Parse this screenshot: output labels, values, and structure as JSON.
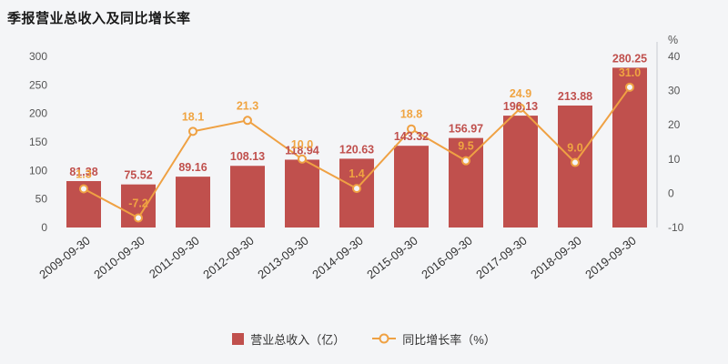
{
  "page": {
    "title": "季报营业总收入及同比增长率"
  },
  "chart_data": {
    "type": "bar+line",
    "title": "季报营业总收入及同比增长率",
    "categories": [
      "2009-09-30",
      "2010-09-30",
      "2011-09-30",
      "2012-09-30",
      "2013-09-30",
      "2014-09-30",
      "2015-09-30",
      "2016-09-30",
      "2017-09-30",
      "2018-09-30",
      "2019-09-30"
    ],
    "series": [
      {
        "name": "营业总收入（亿）",
        "type": "bar",
        "axis": "left",
        "values": [
          81.38,
          75.52,
          89.16,
          108.13,
          118.94,
          120.63,
          143.32,
          156.97,
          196.13,
          213.88,
          280.25
        ]
      },
      {
        "name": "同比增长率（%）",
        "type": "line",
        "axis": "right",
        "values": [
          1.3,
          -7.2,
          18.1,
          21.3,
          10.0,
          1.4,
          18.8,
          9.5,
          24.9,
          9.0,
          31.0
        ]
      }
    ],
    "left_axis": {
      "min": 0,
      "max": 300,
      "step": 50,
      "ticks": [
        0,
        50,
        100,
        150,
        200,
        250,
        300
      ]
    },
    "right_axis": {
      "min": -10,
      "max": 40,
      "step": 10,
      "unit": "%",
      "ticks": [
        -10,
        0,
        10,
        20,
        30,
        40
      ]
    },
    "legend": [
      "营业总收入（亿）",
      "同比增长率（%）"
    ],
    "grid": false,
    "legend_position": "bottom"
  },
  "colors": {
    "background": "#f4f5f7",
    "bar": "#c0504d",
    "bar_label": "#c0504d",
    "line": "#efa143",
    "growth_label": "#f0a441",
    "axis_text": "#555555",
    "x_label": "#333333",
    "axis_line": "#c9ccd0",
    "title": "#1a1a1a"
  }
}
